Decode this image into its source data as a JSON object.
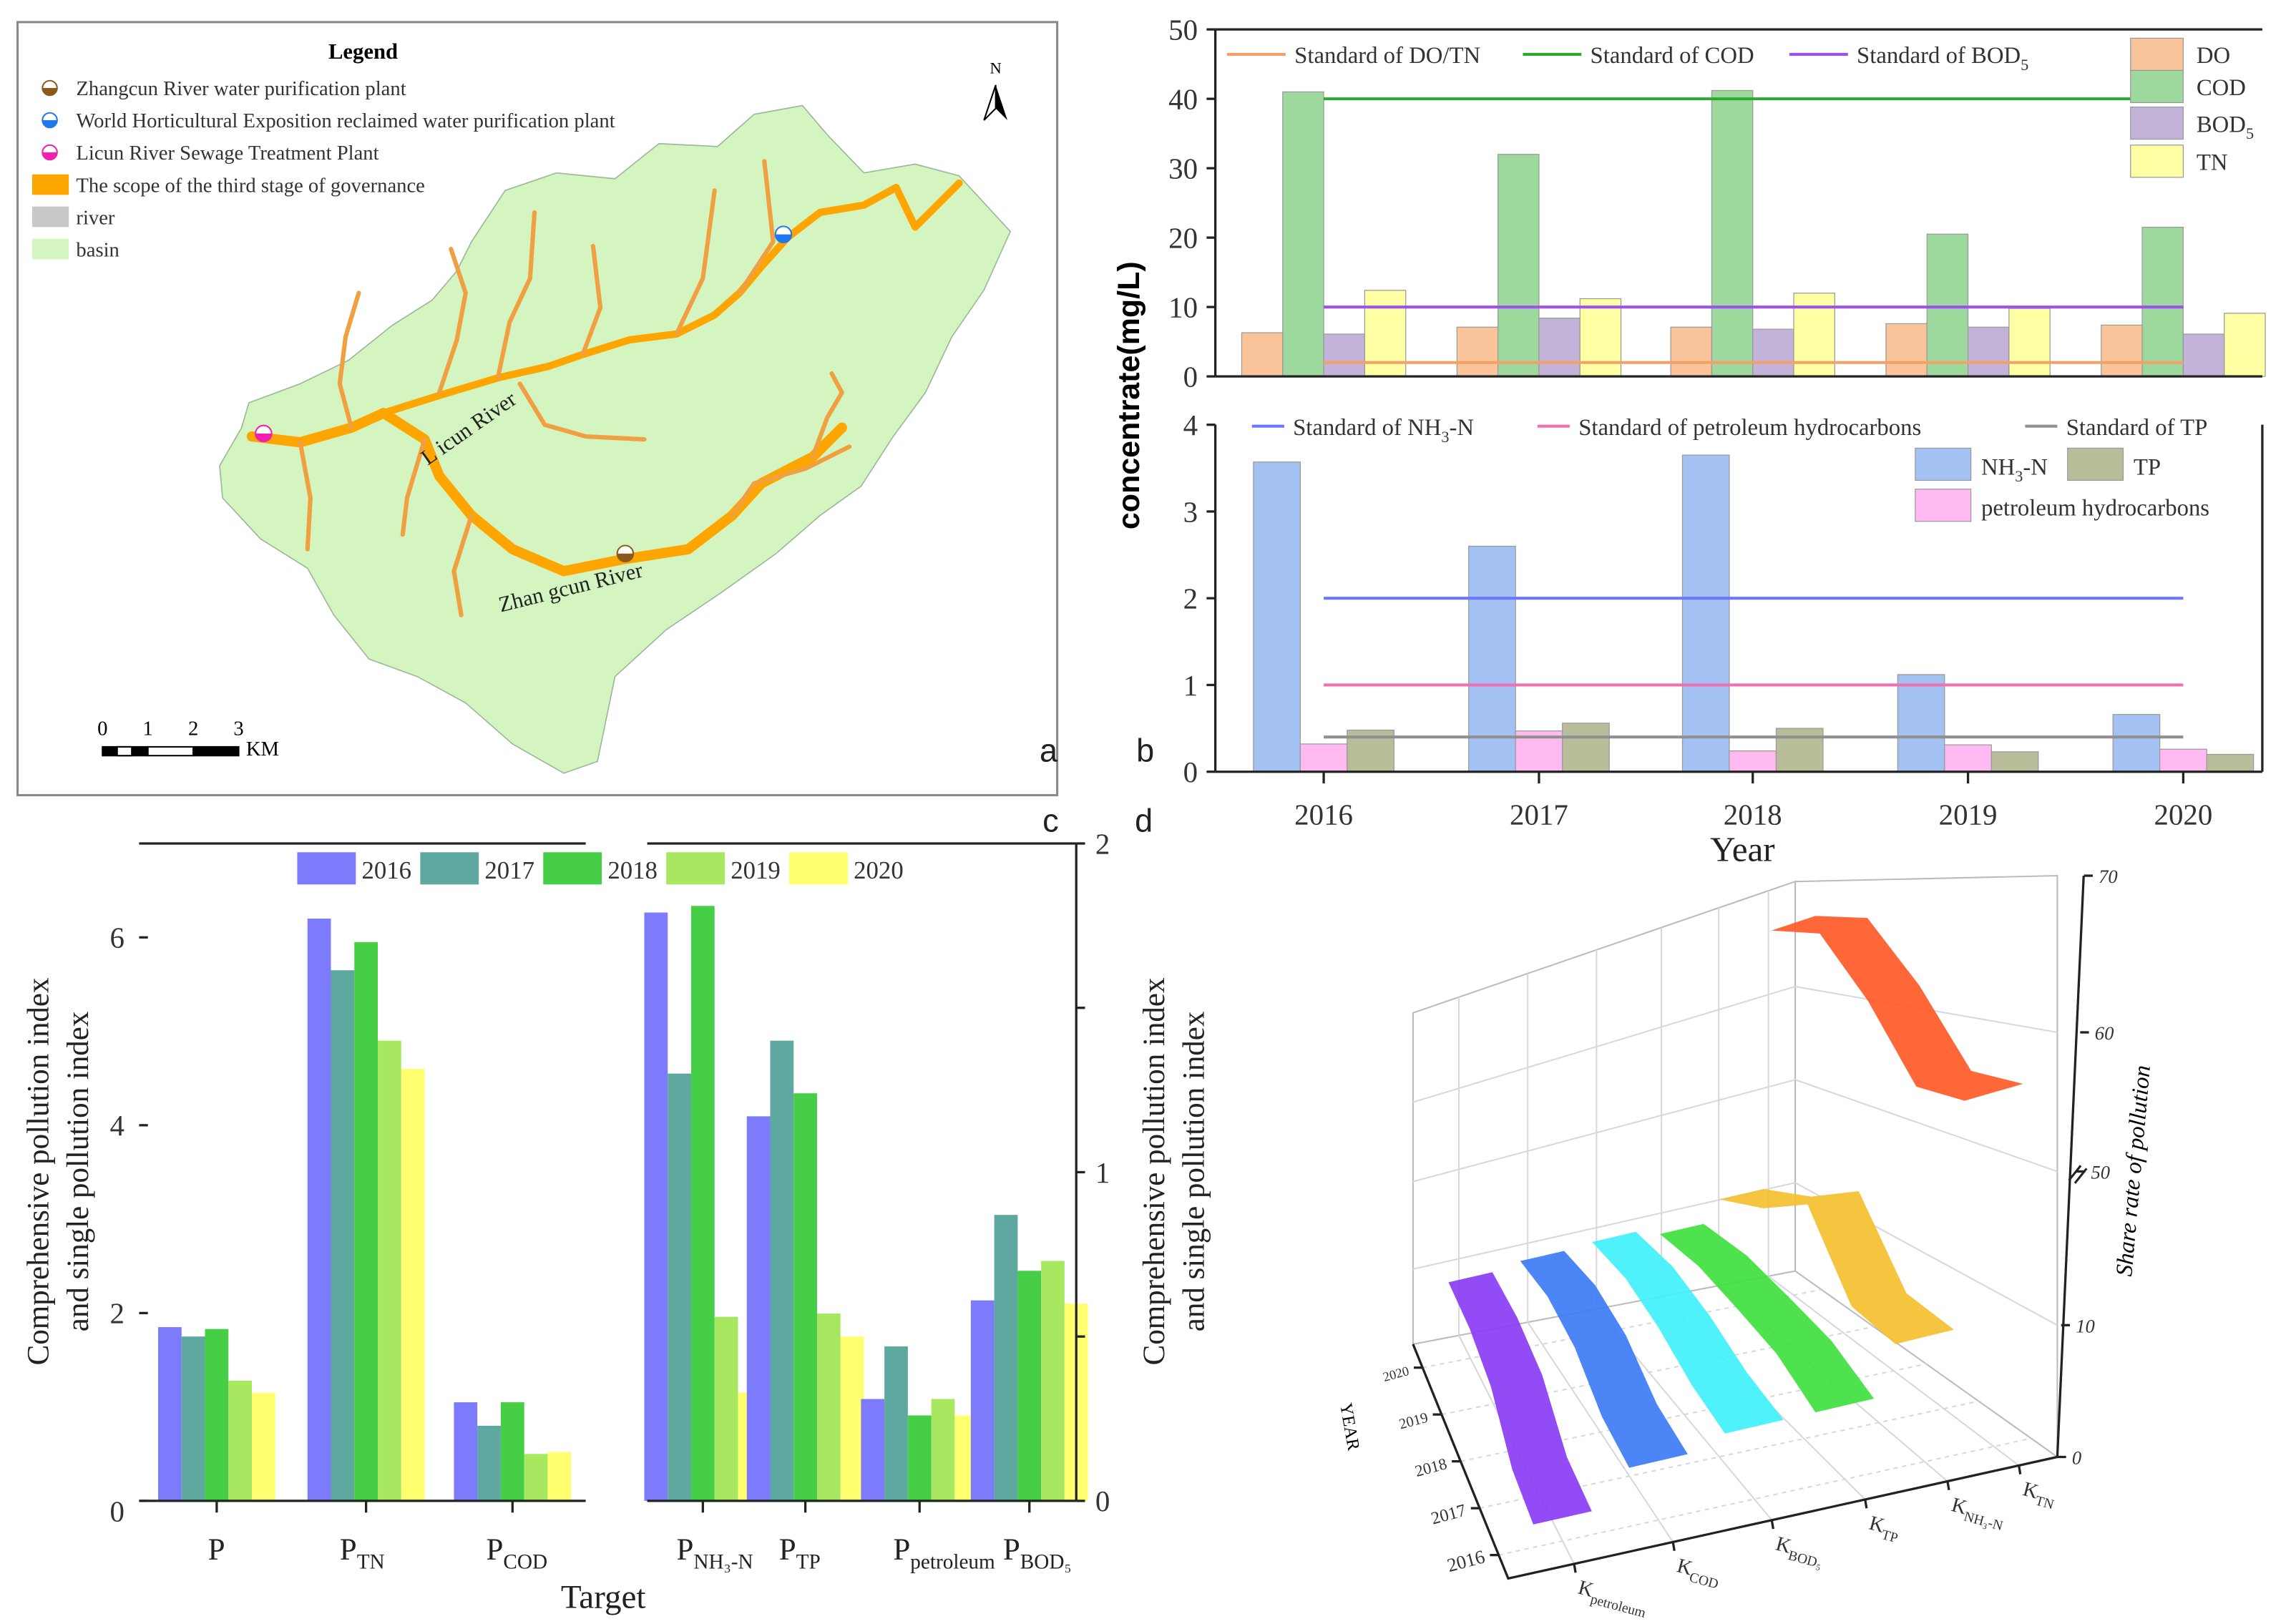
{
  "panel_labels": {
    "a": "a",
    "b": "b",
    "c": "c",
    "d": "d"
  },
  "map": {
    "legend_title": "Legend",
    "legend_items": [
      {
        "label": "Zhangcun River water purification plant",
        "symbol": "half-circle-marker",
        "color": "#8B5A1A"
      },
      {
        "label": "World Horticultural Exposition reclaimed water purification plant",
        "symbol": "half-circle-marker",
        "color": "#1E78F0"
      },
      {
        "label": "Licun River Sewage Treatment Plant",
        "symbol": "half-circle-marker",
        "color": "#F020B0"
      },
      {
        "label": "The scope of the third stage of governance",
        "symbol": "swatch",
        "color": "#FFA500"
      },
      {
        "label": "river",
        "symbol": "swatch",
        "color": "#C8C8C8"
      },
      {
        "label": "basin",
        "symbol": "swatch",
        "color": "#D4F5C0"
      }
    ],
    "river_labels": {
      "licun": "L icun River",
      "zhangcun": "Zhan gcun River"
    },
    "scale_ticks": [
      "0",
      "1",
      "2",
      "3"
    ],
    "scale_unit": "KM",
    "north": "N"
  },
  "chart_data": [
    {
      "id": "b-top",
      "type": "bar",
      "categories": [
        "2016",
        "2017",
        "2018",
        "2019",
        "2020"
      ],
      "ylim": [
        0,
        50
      ],
      "yticks": [
        0,
        10,
        20,
        30,
        40,
        50
      ],
      "ylabel": "concentrate(mg/L)",
      "series": [
        {
          "name": {
            "text": "DO",
            "sub": ""
          },
          "color": "#F9C49A",
          "values": [
            6.3,
            7.1,
            7.1,
            7.6,
            7.4
          ]
        },
        {
          "name": {
            "text": "COD",
            "sub": ""
          },
          "color": "#9DD99D",
          "values": [
            41.0,
            32.0,
            41.2,
            20.5,
            21.5
          ]
        },
        {
          "name": {
            "text": "BOD",
            "sub": "5"
          },
          "color": "#C3B3D9",
          "values": [
            6.1,
            8.4,
            6.8,
            7.1,
            6.1
          ]
        },
        {
          "name": {
            "text": "TN",
            "sub": ""
          },
          "color": "#FFFFA3",
          "values": [
            12.4,
            11.2,
            12.0,
            9.8,
            9.1
          ]
        }
      ],
      "standards": [
        {
          "label": {
            "text": "Standard of DO/TN",
            "sub": ""
          },
          "value": 2,
          "color": "#F4A066"
        },
        {
          "label": {
            "text": "Standard of COD",
            "sub": ""
          },
          "value": 40,
          "color": "#2EA82E"
        },
        {
          "label": {
            "text": "Standard of BOD",
            "sub": "5"
          },
          "value": 10,
          "color": "#A050F0"
        }
      ]
    },
    {
      "id": "b-bottom",
      "type": "bar",
      "categories": [
        "2016",
        "2017",
        "2018",
        "2019",
        "2020"
      ],
      "ylim": [
        0,
        4
      ],
      "yticks": [
        0,
        1,
        2,
        3,
        4
      ],
      "xlabel": "Year",
      "series": [
        {
          "name": {
            "text": "NH",
            "sub": "3",
            "tail": "-N"
          },
          "color": "#A3C1F2",
          "values": [
            3.57,
            2.6,
            3.65,
            1.12,
            0.66
          ]
        },
        {
          "name": {
            "text": "petroleum hydrocarbons",
            "sub": ""
          },
          "color": "#FFBAF2",
          "values": [
            0.32,
            0.47,
            0.24,
            0.31,
            0.26
          ]
        },
        {
          "name": {
            "text": "TP",
            "sub": ""
          },
          "color": "#B9BD99",
          "values": [
            0.48,
            0.56,
            0.5,
            0.23,
            0.2
          ]
        }
      ],
      "standards": [
        {
          "label": {
            "text": "Standard of NH",
            "sub": "3",
            "tail": "-N"
          },
          "value": 2,
          "color": "#6A78FF"
        },
        {
          "label": {
            "text": "Standard of petroleum hydrocarbons",
            "sub": ""
          },
          "value": 1,
          "color": "#F070B4"
        },
        {
          "label": {
            "text": "Standard of TP",
            "sub": ""
          },
          "value": 0.4,
          "color": "#909090"
        }
      ]
    },
    {
      "id": "c",
      "type": "bar",
      "xlabel": "Target",
      "ylabel": [
        "Comprehensive pollution index",
        "and single pollution index"
      ],
      "left_axis": {
        "ylim": [
          0,
          7
        ],
        "yticks": [
          0,
          2,
          4,
          6
        ]
      },
      "right_axis": {
        "ylim": [
          0,
          2
        ],
        "yticks": [
          0,
          1,
          2
        ]
      },
      "years": [
        "2016",
        "2017",
        "2018",
        "2019",
        "2020"
      ],
      "colors": [
        "#7B7BFB",
        "#5FA8A0",
        "#46CE46",
        "#A8E860",
        "#FFFF70"
      ],
      "groups": [
        {
          "label": {
            "text": "P",
            "sub": ""
          },
          "axis": "left",
          "values": [
            1.85,
            1.75,
            1.83,
            1.28,
            1.15
          ]
        },
        {
          "label": {
            "text": "P",
            "sub": "TN"
          },
          "axis": "left",
          "values": [
            6.2,
            5.65,
            5.95,
            4.9,
            4.6
          ]
        },
        {
          "label": {
            "text": "P",
            "sub": "COD"
          },
          "axis": "left",
          "values": [
            1.05,
            0.8,
            1.05,
            0.5,
            0.52
          ]
        },
        {
          "label": {
            "text": "P",
            "sub": "NH₃-N"
          },
          "axis": "right",
          "values": [
            1.79,
            1.3,
            1.81,
            0.56,
            0.33
          ]
        },
        {
          "label": {
            "text": "P",
            "sub": "TP"
          },
          "axis": "right",
          "values": [
            1.17,
            1.4,
            1.24,
            0.57,
            0.5
          ]
        },
        {
          "label": {
            "text": "P",
            "sub": "petroleum"
          },
          "axis": "right",
          "values": [
            0.31,
            0.47,
            0.26,
            0.31,
            0.26
          ]
        },
        {
          "label": {
            "text": "P",
            "sub": "BOD₅"
          },
          "axis": "right",
          "values": [
            0.61,
            0.87,
            0.7,
            0.73,
            0.6
          ]
        }
      ]
    },
    {
      "id": "d",
      "type": "area",
      "zlabel": "Share rate of pollution",
      "ylabel": "YEAR",
      "zticks": [
        0,
        10,
        50,
        60,
        70
      ],
      "zbreak": [
        10,
        50
      ],
      "years": [
        "2016",
        "2017",
        "2018",
        "2019",
        "2020"
      ],
      "series": [
        {
          "name": {
            "text": "K",
            "sub": "petroleum"
          },
          "color": "#8A3CF5",
          "values": [
            2,
            3,
            7,
            9,
            10
          ]
        },
        {
          "name": {
            "text": "K",
            "sub": "COD"
          },
          "color": "#3D7CF5",
          "values": [
            5,
            6,
            9,
            12,
            12
          ]
        },
        {
          "name": {
            "text": "K",
            "sub": "BOD₅"
          },
          "color": "#40F0FA",
          "values": [
            6,
            7,
            9,
            12,
            13
          ]
        },
        {
          "name": {
            "text": "K",
            "sub": "TP"
          },
          "color": "#40E040",
          "values": [
            6,
            8,
            9,
            10,
            10
          ]
        },
        {
          "name": {
            "text": "K",
            "sub": "NH₃-N"
          },
          "color": "#F5C030",
          "values": [
            10,
            12,
            35,
            25,
            18
          ]
        },
        {
          "name": {
            "text": "K",
            "sub": "TN"
          },
          "color": "#FF5A28",
          "values": [
            56,
            56,
            62,
            67,
            67
          ]
        }
      ]
    }
  ]
}
